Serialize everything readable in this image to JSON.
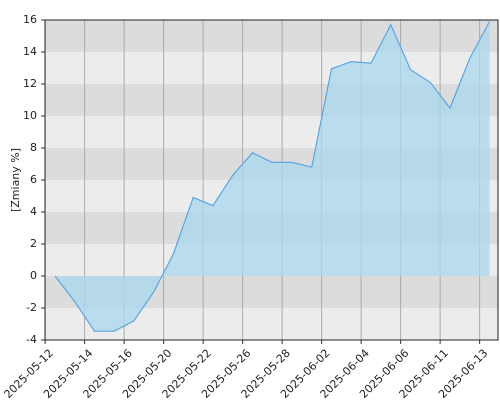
{
  "chart_data": {
    "type": "area",
    "y_label": "[Zmiany %]",
    "categories": [
      "2025-05-12",
      null,
      "2025-05-14",
      null,
      "2025-05-16",
      null,
      "2025-05-20",
      null,
      "2025-05-22",
      null,
      "2025-05-26",
      null,
      "2025-05-28",
      null,
      "2025-06-02",
      null,
      "2025-06-04",
      null,
      "2025-06-06",
      null,
      "2025-06-11",
      null,
      "2025-06-13"
    ],
    "values": [
      0,
      -1.6,
      -3.45,
      -3.45,
      -2.8,
      -1.0,
      1.4,
      4.9,
      4.4,
      6.3,
      7.7,
      7.1,
      7.1,
      6.8,
      12.95,
      13.4,
      13.3,
      15.7,
      12.9,
      12.1,
      10.5,
      13.6,
      15.9
    ],
    "color": "#5aa5e6",
    "fill": "#a8d8ec",
    "ylim": [
      -4,
      16
    ],
    "yticks": [
      -4,
      -2,
      0,
      2,
      4,
      6,
      8,
      10,
      12,
      14,
      16
    ],
    "grid": true
  }
}
